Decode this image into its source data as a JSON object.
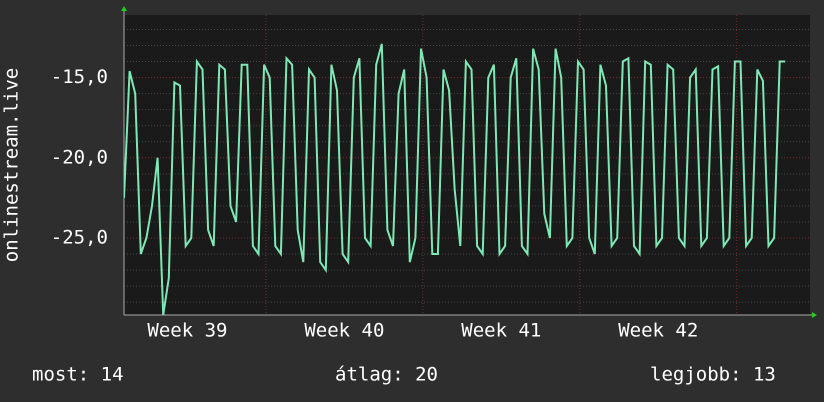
{
  "chart_data": {
    "type": "line",
    "ylabel": "onlinestream.live",
    "xlim": [
      0,
      30.6
    ],
    "ylim": [
      -29.8,
      -11.1
    ],
    "yticks": [
      {
        "value": -15,
        "label": "-15,0"
      },
      {
        "value": -20,
        "label": "-20,0"
      },
      {
        "value": -25,
        "label": "-25,0"
      }
    ],
    "minor_yticks": [
      -29,
      -28,
      -27,
      -26,
      -24,
      -23,
      -22,
      -21,
      -19,
      -18,
      -17,
      -16,
      -14,
      -13,
      -12
    ],
    "xticks": [
      {
        "value": 2.83,
        "label": "Week 39"
      },
      {
        "value": 9.83,
        "label": "Week 40"
      },
      {
        "value": 16.83,
        "label": "Week 41"
      },
      {
        "value": 23.83,
        "label": "Week 42"
      }
    ],
    "xgrid": [
      6.33,
      13.33,
      20.33,
      27.33
    ],
    "grid": true,
    "series": [
      {
        "color": "#7ee8b4",
        "x": [
          0,
          0.25,
          0.5,
          0.75,
          1,
          1.25,
          1.5,
          1.75,
          2,
          2.25,
          2.5,
          2.75,
          3,
          3.25,
          3.5,
          3.75,
          4,
          4.25,
          4.5,
          4.75,
          5,
          5.25,
          5.5,
          5.75,
          6,
          6.25,
          6.5,
          6.75,
          7,
          7.25,
          7.5,
          7.75,
          8,
          8.25,
          8.5,
          8.75,
          9,
          9.25,
          9.5,
          9.75,
          10,
          10.25,
          10.5,
          10.75,
          11,
          11.25,
          11.5,
          11.75,
          12,
          12.25,
          12.5,
          12.75,
          13,
          13.25,
          13.5,
          13.75,
          14,
          14.25,
          14.5,
          14.75,
          15,
          15.25,
          15.5,
          15.75,
          16,
          16.25,
          16.5,
          16.75,
          17,
          17.25,
          17.5,
          17.75,
          18,
          18.25,
          18.5,
          18.75,
          19,
          19.25,
          19.5,
          19.75,
          20,
          20.25,
          20.5,
          20.75,
          21,
          21.25,
          21.5,
          21.75,
          22,
          22.25,
          22.5,
          22.75,
          23,
          23.25,
          23.5,
          23.75,
          24,
          24.25,
          24.5,
          24.75,
          25,
          25.25,
          25.5,
          25.75,
          26,
          26.25,
          26.5,
          26.75,
          27,
          27.25,
          27.5,
          27.75,
          28,
          28.25,
          28.5,
          28.75,
          29,
          29.25,
          29.5
        ],
        "values": [
          -22.5,
          -14.6,
          -16,
          -26,
          -25,
          -23,
          -20,
          -29.8,
          -27.5,
          -15.3,
          -15.5,
          -25.5,
          -25,
          -14,
          -14.5,
          -24.5,
          -25.5,
          -14.2,
          -14.5,
          -23,
          -24,
          -14.2,
          -14.2,
          -25.5,
          -26,
          -14.2,
          -15,
          -25.5,
          -26,
          -13.8,
          -14.2,
          -24.5,
          -26.5,
          -14.5,
          -15,
          -26.5,
          -27,
          -14.2,
          -15.8,
          -26,
          -26.5,
          -15,
          -13.8,
          -25,
          -25.5,
          -14.2,
          -12.9,
          -24.5,
          -25.5,
          -16,
          -14.5,
          -26.5,
          -25,
          -13.2,
          -15,
          -26,
          -26,
          -14.5,
          -15.8,
          -22,
          -25.5,
          -14,
          -14.5,
          -25.5,
          -26,
          -15,
          -14.2,
          -26,
          -25.5,
          -15,
          -13.8,
          -25.5,
          -26,
          -13.2,
          -14.5,
          -23.5,
          -25,
          -13.2,
          -15,
          -25.5,
          -25,
          -14,
          -14.5,
          -25,
          -26,
          -14.2,
          -15.5,
          -25.5,
          -25,
          -14,
          -13.8,
          -25.5,
          -26,
          -14,
          -14.2,
          -25.5,
          -25,
          -14.2,
          -14.5,
          -25,
          -25.5,
          -15,
          -14.5,
          -25.5,
          -25,
          -14.5,
          -14.3,
          -25.5,
          -25,
          -14,
          -14,
          -25.5,
          -25,
          -14.5,
          -15.2,
          -25.5,
          -25,
          -14,
          -14
        ]
      }
    ],
    "footer": [
      "most: 14",
      "átlag: 20",
      "legjobb: 13"
    ]
  }
}
